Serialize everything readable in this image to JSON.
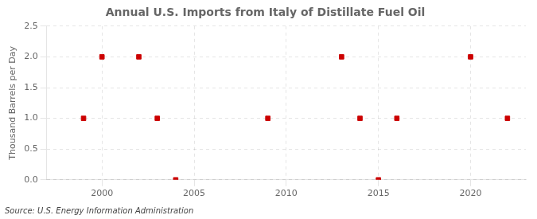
{
  "chart_data": {
    "type": "scatter",
    "title": "Annual U.S. Imports from Italy of Distillate Fuel Oil",
    "ylabel": "Thousand Barrels per Day",
    "annotation": "Source: U.S. Energy Information Administration",
    "x": [
      1999,
      2000,
      2002,
      2003,
      2004,
      2009,
      2013,
      2014,
      2015,
      2016,
      2020,
      2022
    ],
    "values": [
      1,
      2,
      2,
      1,
      0,
      1,
      2,
      1,
      0,
      1,
      2,
      1
    ],
    "color": "#cc0000",
    "marker": "square",
    "grid": true,
    "xlim": [
      1997,
      2023
    ],
    "ylim": [
      0.0,
      2.5
    ],
    "xticks": [
      2000,
      2005,
      2010,
      2015,
      2020
    ],
    "yticks": [
      {
        "value": 0,
        "label": "0.0"
      },
      0.5,
      {
        "value": 1,
        "label": "1.0"
      },
      1.5,
      {
        "value": 2,
        "label": "2.0"
      },
      2.5
    ]
  }
}
